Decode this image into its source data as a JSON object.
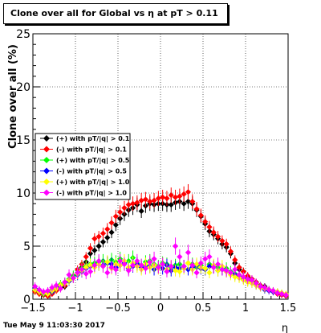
{
  "chart_data": {
    "type": "scatter",
    "title": "Clone  over all for Global vs  η at pT > 0.11",
    "xlabel": "η",
    "ylabel": "Clone  over all (%)",
    "xlim": [
      -1.5,
      1.5
    ],
    "ylim": [
      0,
      25
    ],
    "xticks": [
      -1.5,
      -1,
      -0.5,
      0,
      0.5,
      1,
      1.5
    ],
    "xtick_labels": [
      "−1.5",
      "−1",
      "−0.5",
      "0",
      "0.5",
      "1",
      "1.5"
    ],
    "yticks": [
      0,
      5,
      10,
      15,
      20,
      25
    ],
    "ytick_labels": [
      "0",
      "5",
      "10",
      "15",
      "20",
      "25"
    ],
    "grid": true,
    "legend_position": "left",
    "x": [
      -1.475,
      -1.425,
      -1.375,
      -1.325,
      -1.275,
      -1.225,
      -1.175,
      -1.125,
      -1.075,
      -1.025,
      -0.975,
      -0.925,
      -0.875,
      -0.825,
      -0.775,
      -0.725,
      -0.675,
      -0.625,
      -0.575,
      -0.525,
      -0.475,
      -0.425,
      -0.375,
      -0.325,
      -0.275,
      -0.225,
      -0.175,
      -0.125,
      -0.075,
      -0.025,
      0.025,
      0.075,
      0.125,
      0.175,
      0.225,
      0.275,
      0.325,
      0.375,
      0.425,
      0.475,
      0.525,
      0.575,
      0.625,
      0.675,
      0.725,
      0.775,
      0.825,
      0.875,
      0.925,
      0.975,
      1.025,
      1.075,
      1.125,
      1.175,
      1.225,
      1.275,
      1.325,
      1.375,
      1.425,
      1.475
    ],
    "series": [
      {
        "name": "(+) with pT/|q| > 0.1",
        "color": "#000000",
        "values": [
          0.8,
          0.6,
          0.4,
          0.3,
          0.6,
          0.9,
          1.1,
          1.2,
          1.7,
          2.0,
          2.5,
          3.0,
          3.5,
          4.3,
          4.6,
          5.0,
          5.4,
          5.8,
          6.3,
          7.0,
          7.6,
          8.0,
          8.4,
          8.6,
          8.9,
          8.3,
          8.8,
          9.0,
          8.9,
          9.0,
          9.0,
          8.9,
          8.9,
          9.1,
          9.2,
          9.0,
          9.2,
          9.0,
          8.4,
          7.8,
          7.1,
          6.4,
          6.1,
          5.7,
          5.2,
          4.9,
          4.3,
          3.4,
          2.8,
          2.6,
          2.1,
          1.9,
          1.6,
          1.3,
          1.2,
          0.9,
          0.8,
          0.6,
          0.5,
          0.4
        ]
      },
      {
        "name": "(-) with pT/|q| > 0.1",
        "color": "#ff0000",
        "values": [
          0.7,
          0.5,
          0.4,
          0.3,
          0.5,
          0.8,
          1.0,
          1.3,
          1.8,
          2.2,
          2.8,
          3.3,
          4.0,
          4.8,
          5.7,
          5.9,
          6.2,
          6.6,
          7.2,
          7.8,
          8.2,
          8.6,
          8.9,
          9.0,
          9.1,
          9.3,
          9.4,
          9.2,
          9.3,
          9.5,
          9.6,
          9.5,
          9.8,
          9.6,
          9.7,
          9.9,
          10.1,
          9.2,
          8.5,
          7.9,
          7.3,
          6.8,
          6.3,
          5.9,
          5.5,
          5.2,
          4.5,
          3.7,
          3.0,
          2.6,
          2.2,
          1.9,
          1.6,
          1.3,
          1.1,
          0.9,
          0.7,
          0.5,
          0.4,
          0.3
        ]
      },
      {
        "name": "(+) with pT/|q| > 0.5",
        "color": "#00ff00",
        "values": [
          0.9,
          0.7,
          0.5,
          0.6,
          0.9,
          1.1,
          1.4,
          1.6,
          1.9,
          2.2,
          2.5,
          2.9,
          3.1,
          3.3,
          3.4,
          3.5,
          3.6,
          3.4,
          3.7,
          3.5,
          3.8,
          3.3,
          3.6,
          3.9,
          3.4,
          3.2,
          3.5,
          3.6,
          3.3,
          3.1,
          3.4,
          3.3,
          3.0,
          3.2,
          3.3,
          3.1,
          3.4,
          3.3,
          3.0,
          3.2,
          2.9,
          3.3,
          3.1,
          3.0,
          2.8,
          2.9,
          2.6,
          2.4,
          2.2,
          2.0,
          1.8,
          1.6,
          1.4,
          1.2,
          1.0,
          0.9,
          0.8,
          0.7,
          0.6,
          0.4
        ]
      },
      {
        "name": "(-) with pT/|q| > 0.5",
        "color": "#0000ff",
        "values": [
          1.0,
          0.8,
          0.6,
          0.5,
          0.7,
          1.0,
          1.2,
          1.5,
          1.7,
          2.0,
          2.3,
          2.6,
          2.9,
          3.1,
          3.2,
          3.3,
          3.2,
          3.4,
          3.3,
          3.0,
          3.2,
          3.4,
          2.9,
          3.1,
          3.3,
          3.0,
          3.2,
          3.1,
          2.8,
          3.0,
          2.9,
          3.2,
          2.7,
          3.0,
          2.9,
          3.1,
          2.8,
          3.0,
          3.2,
          2.9,
          2.8,
          3.1,
          3.0,
          2.7,
          2.8,
          2.6,
          2.5,
          2.3,
          2.1,
          1.9,
          1.7,
          1.5,
          1.3,
          1.1,
          0.9,
          0.8,
          0.7,
          0.6,
          0.5,
          0.4
        ]
      },
      {
        "name": "(+) with pT/|q| > 1.0",
        "color": "#ffff00",
        "values": [
          0.9,
          0.7,
          0.6,
          0.5,
          0.8,
          1.0,
          1.3,
          1.5,
          1.8,
          2.0,
          2.4,
          2.7,
          3.0,
          3.2,
          3.0,
          3.3,
          3.1,
          3.5,
          2.9,
          3.3,
          3.2,
          3.6,
          3.0,
          3.4,
          3.1,
          2.8,
          3.3,
          3.0,
          3.2,
          2.9,
          3.3,
          2.8,
          3.1,
          2.7,
          2.6,
          2.9,
          3.4,
          2.8,
          3.3,
          3.0,
          2.9,
          2.5,
          3.2,
          2.7,
          3.1,
          2.6,
          2.3,
          2.1,
          2.0,
          1.8,
          1.6,
          1.5,
          1.3,
          1.1,
          1.0,
          0.9,
          0.8,
          0.7,
          0.6,
          0.5
        ]
      },
      {
        "name": "(-) with pT/|q| > 1.0",
        "color": "#ff00ff",
        "values": [
          1.2,
          0.9,
          0.7,
          0.8,
          1.1,
          1.3,
          1.0,
          1.6,
          2.3,
          2.0,
          2.5,
          2.8,
          2.4,
          2.6,
          3.2,
          3.6,
          3.1,
          2.5,
          3.0,
          2.8,
          3.6,
          3.3,
          2.7,
          3.2,
          3.6,
          3.2,
          2.9,
          3.5,
          3.8,
          3.0,
          3.3,
          2.6,
          3.1,
          5.0,
          4.0,
          3.1,
          4.4,
          3.2,
          2.5,
          3.4,
          3.8,
          4.0,
          3.0,
          3.3,
          2.8,
          2.7,
          2.5,
          2.8,
          2.3,
          2.1,
          1.9,
          1.8,
          1.5,
          1.2,
          1.1,
          0.9,
          0.8,
          0.6,
          0.5,
          0.4
        ]
      }
    ],
    "footer": "Tue May  9 11:03:30 2017"
  }
}
